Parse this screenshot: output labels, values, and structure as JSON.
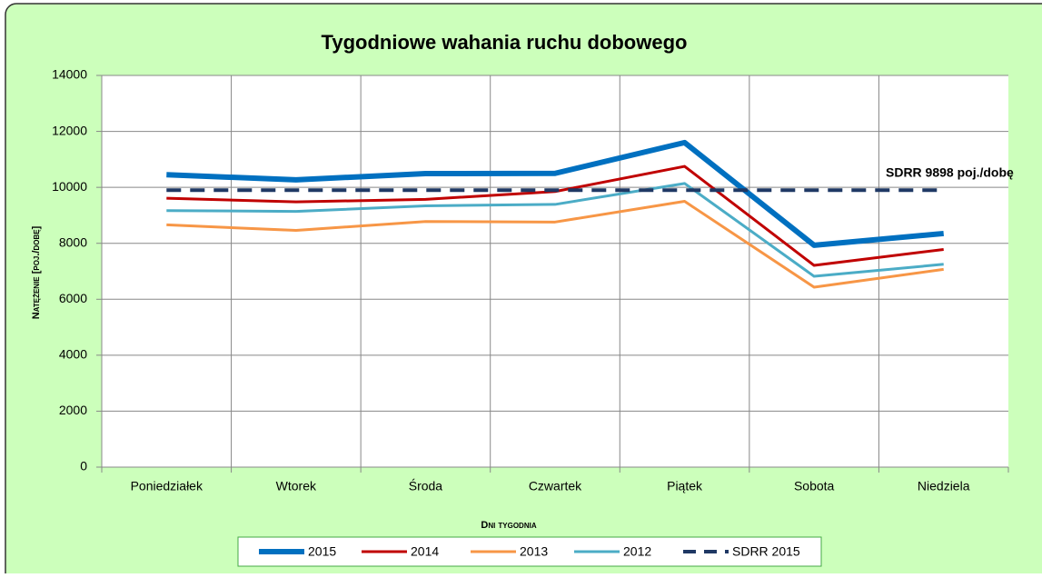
{
  "chart_data": {
    "type": "line",
    "title": "Tygodniowe wahania ruchu dobowego",
    "x_label": "Dni tygodnia",
    "y_label": "Natężenie [poj./dobę]",
    "annotation": "SDRR 9898  poj./dobę",
    "categories": [
      "Poniedziałek",
      "Wtorek",
      "Środa",
      "Czwartek",
      "Piątek",
      "Sobota",
      "Niedziela"
    ],
    "series": [
      {
        "name": "2015",
        "color": "#0070c0",
        "values": [
          10450,
          10270,
          10490,
          10500,
          11600,
          7930,
          8350
        ]
      },
      {
        "name": "2014",
        "color": "#c00000",
        "values": [
          9610,
          9480,
          9570,
          9850,
          10750,
          7210,
          7780
        ]
      },
      {
        "name": "2013",
        "color": "#f79646",
        "values": [
          8660,
          8460,
          8780,
          8760,
          9500,
          6430,
          7070
        ]
      },
      {
        "name": "2012",
        "color": "#4bacc6",
        "values": [
          9170,
          9140,
          9340,
          9390,
          10140,
          6820,
          7250
        ]
      },
      {
        "name": "SDRR 2015",
        "color": "#1f3864",
        "dashed": true,
        "values": [
          9898,
          9898,
          9898,
          9898,
          9898,
          9898,
          9898
        ]
      }
    ],
    "ylim": [
      0,
      14000
    ],
    "yticks": [
      0,
      2000,
      4000,
      6000,
      8000,
      10000,
      12000,
      14000
    ],
    "grid": true
  }
}
